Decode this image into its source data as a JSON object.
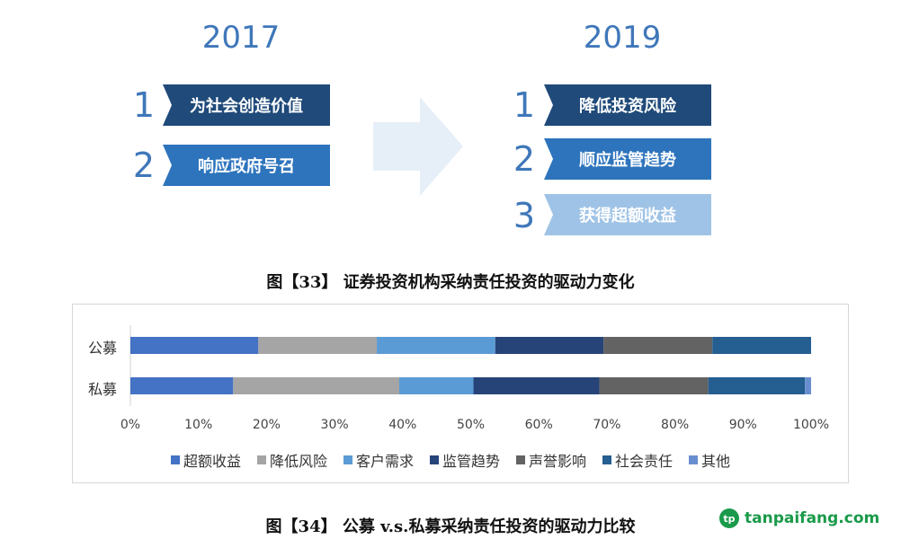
{
  "figure33": {
    "left_year": "2017",
    "right_year": "2019",
    "left_items": [
      {
        "num": "1",
        "label": "为社会创造价值",
        "color": "#1f4a79"
      },
      {
        "num": "2",
        "label": "响应政府号召",
        "color": "#2e74bd"
      }
    ],
    "right_items": [
      {
        "num": "1",
        "label": "降低投资风险",
        "color": "#1f4a79"
      },
      {
        "num": "2",
        "label": "顺应监管趋势",
        "color": "#2e74bd"
      },
      {
        "num": "3",
        "label": "获得超额收益",
        "color": "#9fc3e6"
      }
    ],
    "arrow_color": "#e6eff8",
    "caption": "图【33】 证券投资机构采纳责任投资的驱动力变化"
  },
  "chart_data": {
    "type": "bar",
    "orientation": "horizontal",
    "stacked": true,
    "percent": true,
    "categories": [
      "公募",
      "私募"
    ],
    "series": [
      {
        "name": "超额收益",
        "color": "#4472c4",
        "values": [
          18.8,
          15.1
        ]
      },
      {
        "name": "降低风险",
        "color": "#a5a5a5",
        "values": [
          17.4,
          24.4
        ]
      },
      {
        "name": "客户需求",
        "color": "#5b9bd5",
        "values": [
          17.4,
          10.9
        ]
      },
      {
        "name": "监管趋势",
        "color": "#264478",
        "values": [
          15.9,
          18.5
        ]
      },
      {
        "name": "声誉影响",
        "color": "#636363",
        "values": [
          16.0,
          16.0
        ]
      },
      {
        "name": "社会责任",
        "color": "#255e91",
        "values": [
          14.5,
          14.2
        ]
      },
      {
        "name": "其他",
        "color": "#698ed0",
        "values": [
          0,
          0.9
        ]
      }
    ],
    "xlim": [
      0,
      100
    ],
    "x_ticks": [
      "0%",
      "10%",
      "20%",
      "30%",
      "40%",
      "50%",
      "60%",
      "70%",
      "80%",
      "90%",
      "100%"
    ],
    "legend_position": "bottom",
    "title": "",
    "xlabel": "",
    "ylabel": ""
  },
  "figure34_caption": "图【34】 公募 v.s.私募采纳责任投资的驱动力比较",
  "watermark": {
    "logo_text": "tp",
    "text": "tanpaifang.com"
  }
}
